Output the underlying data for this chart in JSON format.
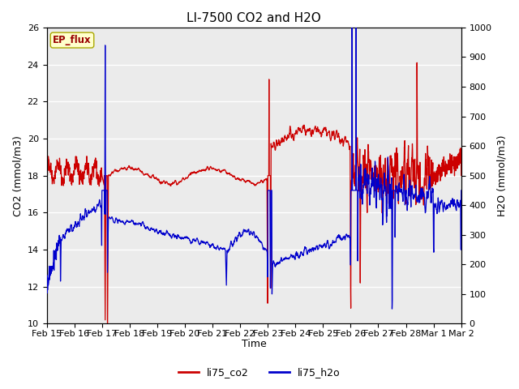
{
  "title": "LI-7500 CO2 and H2O",
  "xlabel": "Time",
  "ylabel_left": "CO2 (mmol/m3)",
  "ylabel_right": "H2O (mmol/m3)",
  "ylim_left": [
    10,
    26
  ],
  "ylim_right": [
    0,
    1000
  ],
  "yticks_left": [
    10,
    12,
    14,
    16,
    18,
    20,
    22,
    24,
    26
  ],
  "yticks_right": [
    0,
    100,
    200,
    300,
    400,
    500,
    600,
    700,
    800,
    900,
    1000
  ],
  "xtick_labels": [
    "Feb 15",
    "Feb 16",
    "Feb 17",
    "Feb 18",
    "Feb 19",
    "Feb 20",
    "Feb 21",
    "Feb 22",
    "Feb 23",
    "Feb 24",
    "Feb 25",
    "Feb 26",
    "Feb 27",
    "Feb 28",
    "Mar 1",
    "Mar 2"
  ],
  "co2_color": "#cc0000",
  "h2o_color": "#0000cc",
  "legend_label_co2": "li75_co2",
  "legend_label_h2o": "li75_h2o",
  "annotation_text": "EP_flux",
  "annotation_bbox_facecolor": "#ffffcc",
  "annotation_bbox_edgecolor": "#aaa800",
  "plot_bg_color": "#ebebeb",
  "grid_color": "#ffffff",
  "title_fontsize": 11,
  "axis_fontsize": 9,
  "tick_fontsize": 8,
  "linewidth": 0.9
}
